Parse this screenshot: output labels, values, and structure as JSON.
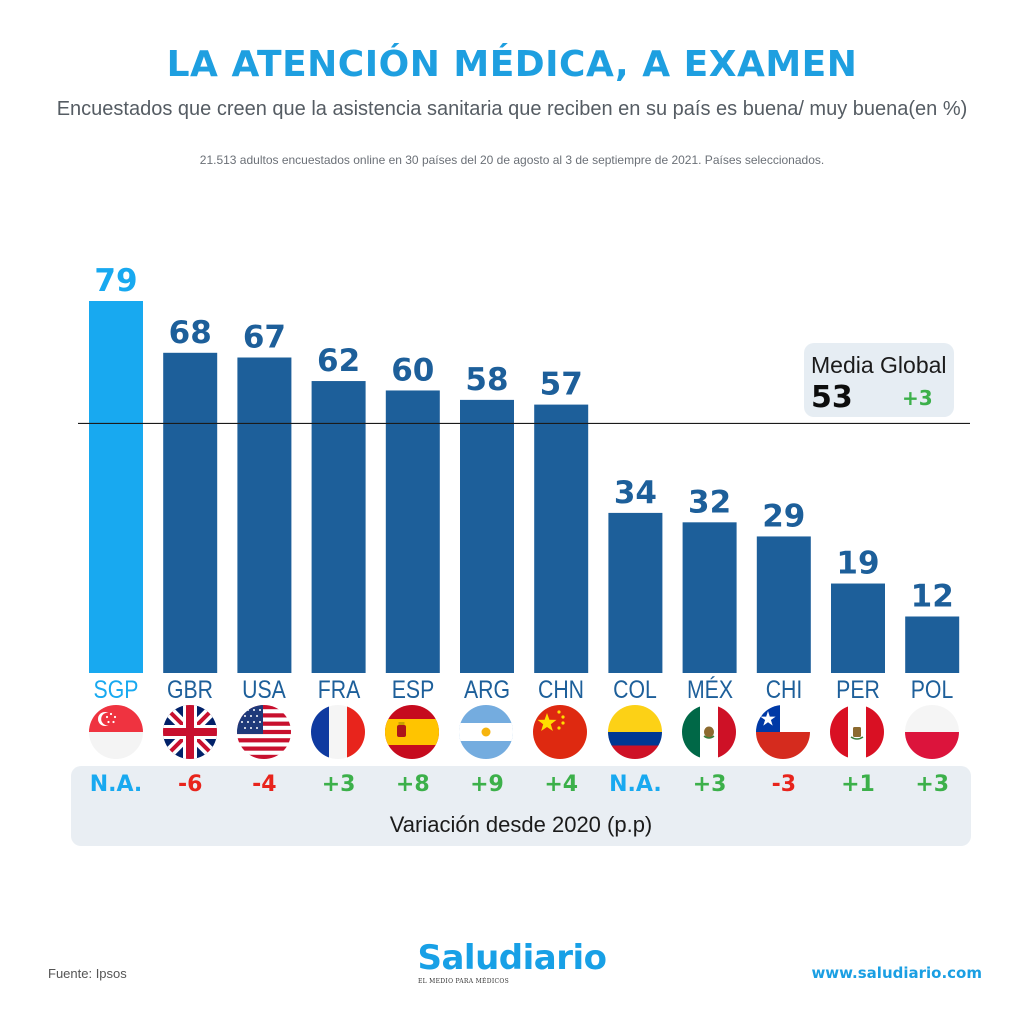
{
  "header": {
    "title": "LA ATENCIÓN MÉDICA, A EXAMEN",
    "subtitle": "Encuestados que creen que la asistencia sanitaria que reciben en su país es buena/ muy buena(en %)",
    "note": "21.513 adultos encuestados online en 30 países del 20 de agosto al 3 de septiempre de 2021. Países seleccionados."
  },
  "chart_data": {
    "type": "bar",
    "title": "LA ATENCIÓN MÉDICA, A EXAMEN",
    "xlabel": "",
    "ylabel": "",
    "ylim": [
      0,
      79
    ],
    "grid": false,
    "categories": [
      "SGP",
      "GBR",
      "USA",
      "FRA",
      "ESP",
      "ARG",
      "CHN",
      "COL",
      "MÉX",
      "CHI",
      "PER",
      "POL"
    ],
    "values": [
      79,
      68,
      67,
      62,
      60,
      58,
      57,
      34,
      32,
      29,
      19,
      12
    ],
    "variation": [
      "N.A.",
      "-6",
      "-4",
      "+3",
      "+8",
      "+9",
      "+4",
      "N.A.",
      "+3",
      "-3",
      "+1",
      "+3"
    ],
    "reference_line": {
      "label": "Media Global",
      "value": 53,
      "change": "+3"
    },
    "colors": {
      "highlight": "#18a9f0",
      "bar": "#1d5f9a",
      "positive": "#3cb04a",
      "negative": "#e8241c"
    }
  },
  "variation_caption": "Variación desde 2020 (p.p)",
  "flags": [
    "singapore-flag-icon",
    "uk-flag-icon",
    "usa-flag-icon",
    "france-flag-icon",
    "spain-flag-icon",
    "argentina-flag-icon",
    "china-flag-icon",
    "colombia-flag-icon",
    "mexico-flag-icon",
    "chile-flag-icon",
    "peru-flag-icon",
    "poland-flag-icon"
  ],
  "footer": {
    "source": "Fuente: Ipsos",
    "brand": "Saludiario",
    "tagline": "EL MEDIO PARA MÉDICOS",
    "url": "www.saludiario.com"
  }
}
